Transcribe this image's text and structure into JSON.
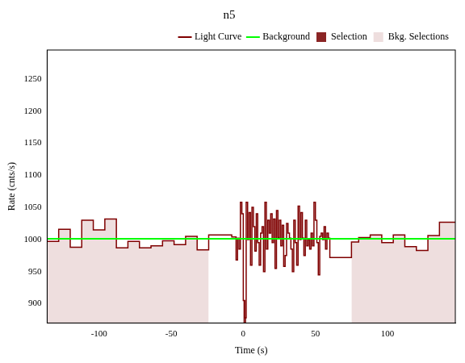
{
  "chart_data": {
    "type": "step",
    "title": "n5",
    "x_label": "Time (s)",
    "y_label": "Rate (cnts/s)",
    "xlim": [
      -136,
      147
    ],
    "ylim": [
      870,
      1295
    ],
    "xticks": [
      -100,
      -50,
      0,
      50,
      100
    ],
    "yticks": [
      900,
      950,
      1000,
      1050,
      1100,
      1150,
      1200,
      1250
    ],
    "grid": false,
    "legend": "upper right",
    "series": [
      {
        "name": "Light Curve",
        "color": "#7f0000",
        "type": "step",
        "bins": [
          -136,
          -128,
          -120,
          -112,
          -104,
          -96,
          -88,
          -80,
          -72,
          -64,
          -56,
          -48,
          -40,
          -32,
          -24,
          -8,
          -5,
          -4,
          -3,
          -2,
          -1,
          0,
          1,
          2,
          3,
          4,
          5,
          6,
          7,
          8,
          9,
          10,
          11,
          12,
          13,
          14,
          15,
          16,
          17,
          18,
          19,
          20,
          21,
          22,
          23,
          24,
          25,
          26,
          27,
          28,
          29,
          30,
          31,
          32,
          33,
          34,
          35,
          36,
          37,
          38,
          39,
          40,
          41,
          42,
          43,
          44,
          45,
          46,
          47,
          48,
          49,
          50,
          51,
          52,
          53,
          54,
          55,
          56,
          57,
          58,
          59,
          60,
          75,
          80,
          88,
          96,
          104,
          112,
          120,
          128,
          136,
          147
        ],
        "values": [
          997,
          1016,
          988,
          1030,
          1015,
          1032,
          987,
          997,
          987,
          990,
          998,
          992,
          1005,
          984,
          1007,
          1004,
          968,
          1002,
          985,
          1058,
          1040,
          905,
          878,
          1058,
          1000,
          1042,
          960,
          1050,
          1020,
          982,
          1040,
          995,
          960,
          1010,
          1020,
          950,
          1058,
          985,
          1030,
          1010,
          1040,
          995,
          1032,
          955,
          1045,
          1003,
          1030,
          990,
          1022,
          958,
          975,
          1025,
          1010,
          1002,
          985,
          950,
          1030,
          995,
          960,
          1052,
          1000,
          1042,
          1002,
          975,
          1030,
          990,
          1000,
          985,
          1010,
          990,
          1058,
          1030,
          995,
          945,
          1005,
          1010,
          1000,
          1020,
          985,
          1010,
          1002,
          972,
          996,
          1003,
          1007,
          995,
          1007,
          989,
          983,
          1006,
          1027
        ]
      },
      {
        "name": "Background",
        "color": "#00ff00",
        "type": "line",
        "x": [
          -136,
          147
        ],
        "values": [
          1001,
          1001
        ]
      }
    ],
    "selection": {
      "name": "Selection",
      "color": "#8b2525",
      "range": [
        0,
        2
      ]
    },
    "bkg_selections": {
      "name": "Bkg. Selections",
      "color": "#eedede",
      "ranges": [
        [
          -136,
          -24
        ],
        [
          75,
          147
        ]
      ]
    }
  }
}
